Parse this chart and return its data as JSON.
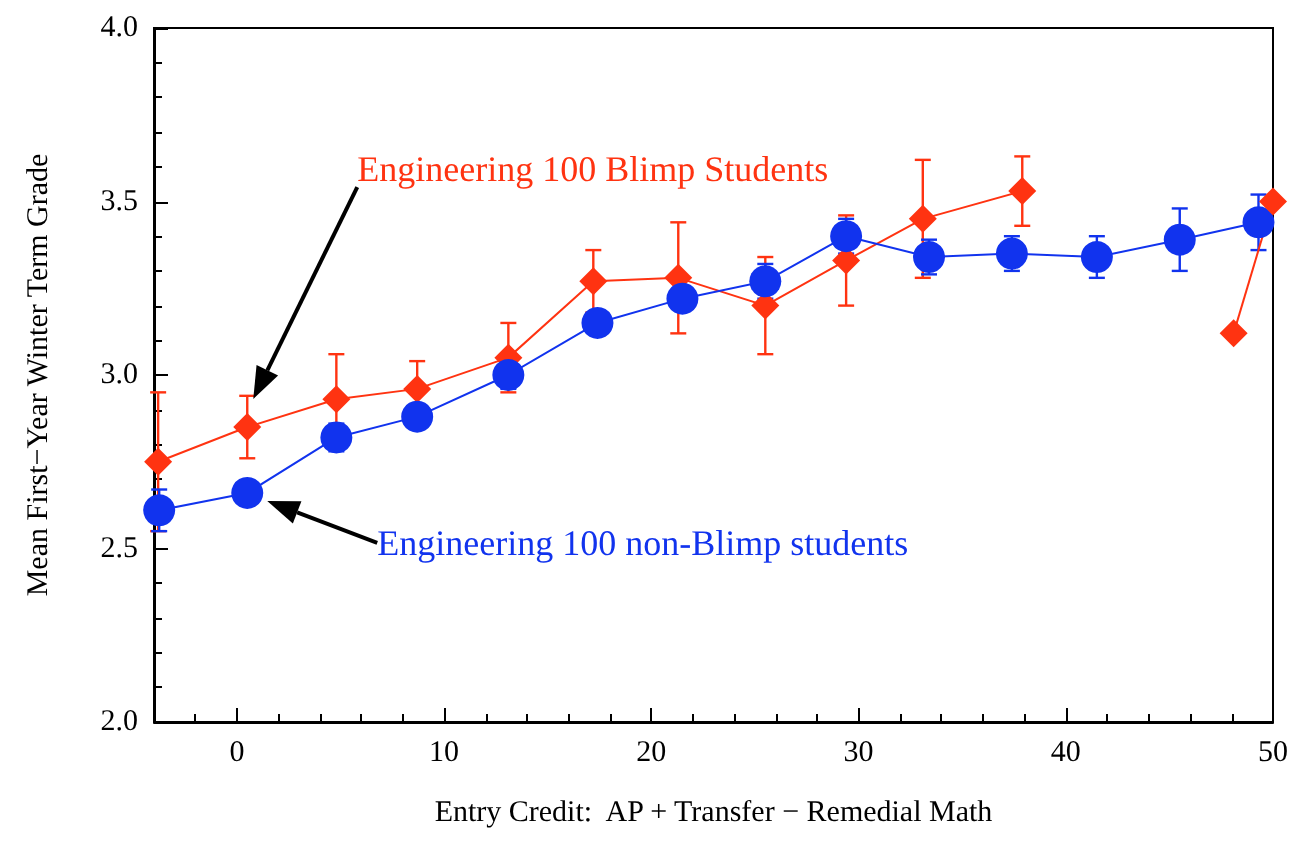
{
  "chart_data": {
    "type": "line",
    "xlabel": "Entry Credit:  AP + Transfer − Remedial Math",
    "ylabel": "Mean First−Year Winter Term Grade",
    "xlim": [
      -4,
      50
    ],
    "xticks": [
      0,
      10,
      20,
      30,
      40,
      50
    ],
    "ylim": [
      2.0,
      4.0
    ],
    "yticks": [
      {
        "value": 2.0,
        "label": "2.0"
      },
      {
        "value": 2.5,
        "label": "2.5"
      },
      {
        "value": 3.0,
        "label": "3.0"
      },
      {
        "value": 3.5,
        "label": "3.5"
      },
      {
        "value": 4.0,
        "label": "4.0"
      }
    ],
    "grid": false,
    "line_style": "solid",
    "series": [
      {
        "color": "#ff3311",
        "marker": "diamond",
        "x": [
          -3.8,
          0.5,
          4.8,
          8.7,
          13.1,
          17.2,
          21.3,
          25.5,
          29.4,
          33.1,
          37.9
        ],
        "values": [
          2.75,
          2.85,
          2.93,
          2.96,
          3.05,
          3.27,
          3.28,
          3.2,
          3.33,
          3.45,
          3.53
        ],
        "errors": [
          0.2,
          0.09,
          0.13,
          0.08,
          0.1,
          0.09,
          0.16,
          0.14,
          0.13,
          0.17,
          0.1
        ]
      },
      {
        "color": "#1133ee",
        "marker": "circle",
        "x": [
          -3.75,
          0.5,
          4.8,
          8.7,
          13.1,
          17.4,
          21.5,
          25.5,
          29.4,
          33.4,
          37.4,
          41.5,
          45.5,
          49.3
        ],
        "values": [
          2.61,
          2.66,
          2.82,
          2.88,
          3.0,
          3.15,
          3.22,
          3.27,
          3.4,
          3.34,
          3.35,
          3.34,
          3.39,
          3.44
        ],
        "errors": [
          0.06,
          null,
          0.04,
          0.03,
          0.04,
          0.03,
          null,
          0.05,
          0.05,
          0.05,
          0.05,
          0.06,
          0.09,
          0.08
        ]
      },
      {
        "color": "#ff3311",
        "marker": "diamond",
        "x": [
          48.1,
          50
        ],
        "values": [
          3.12,
          3.5
        ]
      }
    ],
    "annotations": [
      "Engineering 100 Blimp Students",
      "Engineering 100 non-Blimp students"
    ]
  }
}
